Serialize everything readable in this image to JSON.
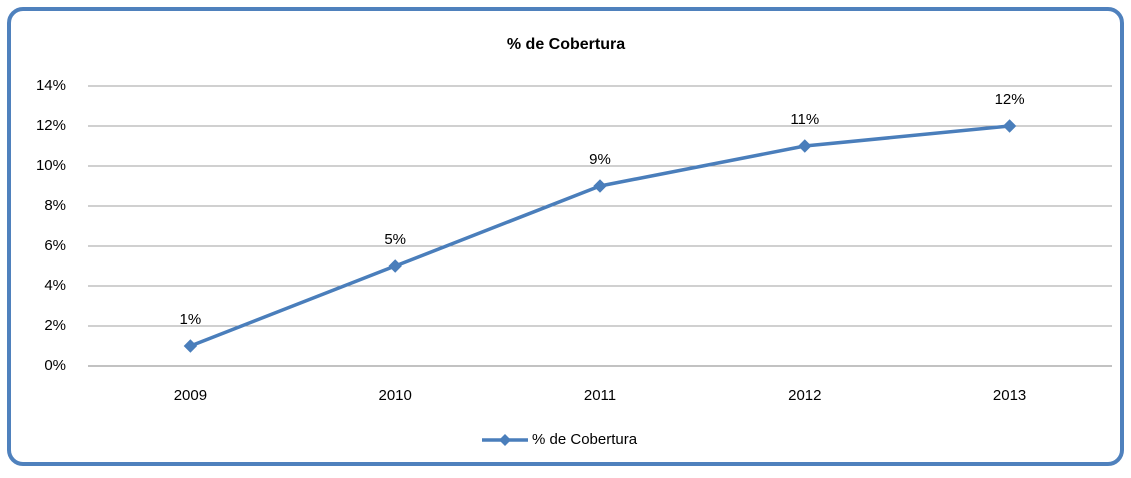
{
  "chart_data": {
    "type": "line",
    "title": "% de Cobertura",
    "categories": [
      "2009",
      "2010",
      "2011",
      "2012",
      "2013"
    ],
    "series": [
      {
        "name": "% de Cobertura",
        "color": "#4a7ebb",
        "values": [
          1,
          5,
          9,
          11,
          12
        ],
        "value_labels": [
          "1%",
          "5%",
          "9%",
          "11%",
          "12%"
        ]
      }
    ],
    "ylim": [
      0,
      14
    ],
    "yticks": [
      {
        "value": 0,
        "label": "0%"
      },
      {
        "value": 2,
        "label": "2%"
      },
      {
        "value": 4,
        "label": "4%"
      },
      {
        "value": 6,
        "label": "6%"
      },
      {
        "value": 8,
        "label": "8%"
      },
      {
        "value": 10,
        "label": "10%"
      },
      {
        "value": 12,
        "label": "12%"
      },
      {
        "value": 14,
        "label": "14%"
      }
    ],
    "grid": true,
    "legend": "bottom"
  }
}
